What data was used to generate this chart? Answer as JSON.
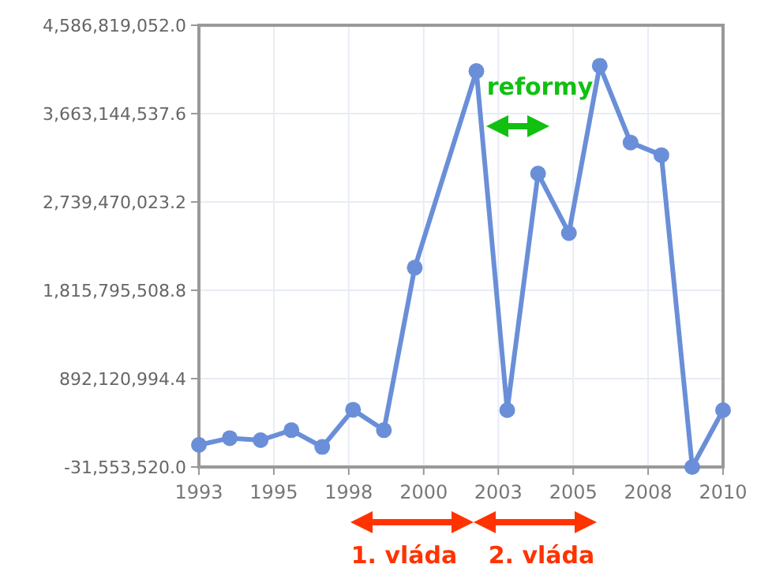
{
  "chart_data": {
    "type": "line",
    "x": [
      1993,
      1994,
      1995,
      1996,
      1997,
      1998,
      1999,
      2000,
      2002,
      2003,
      2004,
      2005,
      2006,
      2007,
      2008,
      2009,
      2010
    ],
    "series": [
      {
        "color": "#6a8fd8",
        "values": [
          199000000,
          270000000,
          249000000,
          353000000,
          178000000,
          567000000,
          353000000,
          2052000000,
          4108000000,
          562000000,
          3036000000,
          2414000000,
          4163000000,
          3361000000,
          3229000000,
          -31553520,
          562000000
        ]
      }
    ],
    "xlim": [
      1993,
      2010
    ],
    "xticks": [
      {
        "value": 1993,
        "label": "1993"
      },
      {
        "value": 1995.43,
        "label": "1995"
      },
      {
        "value": 1997.86,
        "label": "1998"
      },
      {
        "value": 2000.29,
        "label": "2000"
      },
      {
        "value": 2002.71,
        "label": "2003"
      },
      {
        "value": 2005.14,
        "label": "2005"
      },
      {
        "value": 2007.57,
        "label": "2008"
      },
      {
        "value": 2010,
        "label": "2010"
      }
    ],
    "ylim": [
      -31553520,
      4586819052
    ],
    "yticks": [
      {
        "value": -31553520,
        "label": "-31,553,520.0"
      },
      {
        "value": 892120994.4,
        "label": "892,120,994.4"
      },
      {
        "value": 1815795508.8,
        "label": "1,815,795,508.8"
      },
      {
        "value": 2739470023.2,
        "label": "2,739,470,023.2"
      },
      {
        "value": 3663144537.6,
        "label": "3,663,144,537.6"
      },
      {
        "value": 4586819052,
        "label": "4,586,819,052.0"
      }
    ],
    "grid": true,
    "marker": "circle",
    "line_style": "solid",
    "annotations": [
      "reformy",
      "1. vláda",
      "2. vláda"
    ]
  }
}
